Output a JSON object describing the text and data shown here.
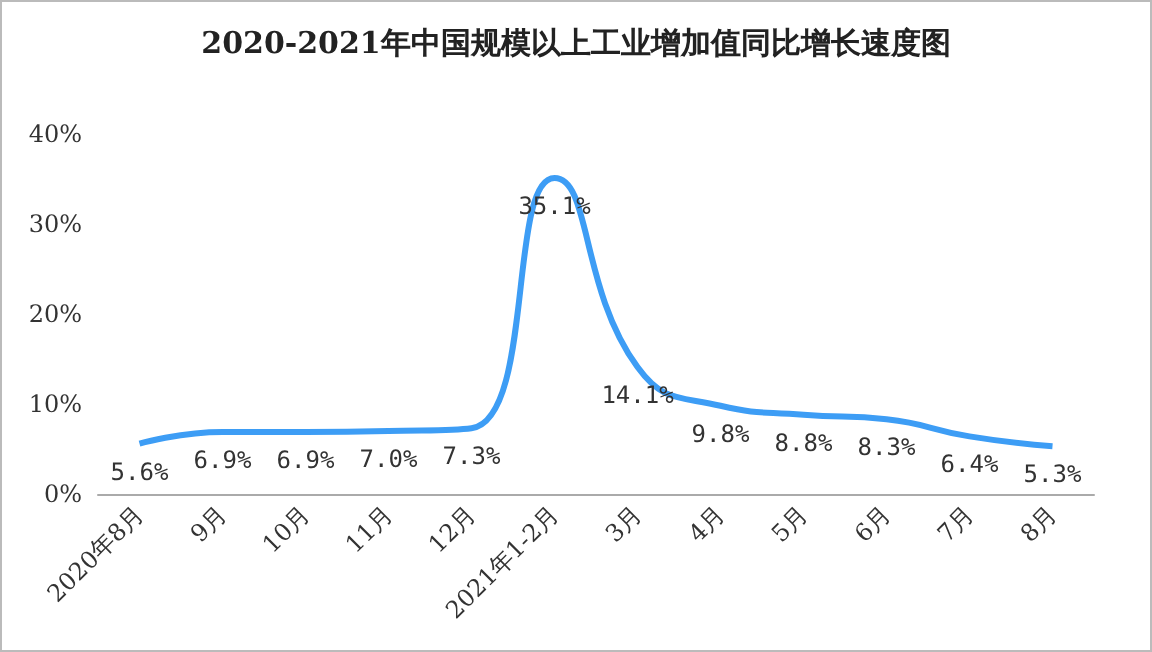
{
  "chart_data": {
    "type": "line",
    "title": "2020-2021年中国规模以上工业增加值同比增长速度图",
    "categories": [
      "2020年8月",
      "9月",
      "10月",
      "11月",
      "12月",
      "2021年1-2月",
      "3月",
      "4月",
      "5月",
      "6月",
      "7月",
      "8月"
    ],
    "series": [
      {
        "color": "#3d9df5",
        "values": [
          5.6,
          6.9,
          6.9,
          7.0,
          7.3,
          35.1,
          14.1,
          9.8,
          8.8,
          8.3,
          6.4,
          5.3
        ],
        "value_labels": [
          "5.6%",
          "6.9%",
          "6.9%",
          "7.0%",
          "7.3%",
          "35.1%",
          "14.1%",
          "9.8%",
          "8.8%",
          "8.3%",
          "6.4%",
          "5.3%"
        ]
      }
    ],
    "ylim": [
      0,
      40
    ],
    "yticks": [
      {
        "value": 0,
        "label": "0%"
      },
      {
        "value": 10,
        "label": "10%"
      },
      {
        "value": 20,
        "label": "20%"
      },
      {
        "value": 30,
        "label": "30%"
      },
      {
        "value": 40,
        "label": "40%"
      }
    ],
    "grid": false,
    "marker": "none",
    "line_style": "solid"
  }
}
